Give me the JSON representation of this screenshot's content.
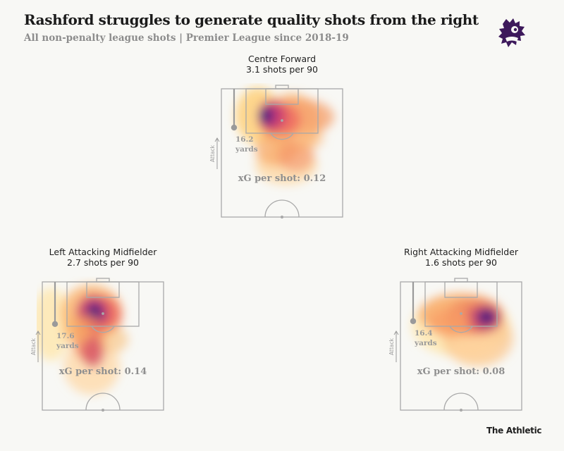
{
  "title": "Rashford struggles to generate quality shots from the right",
  "subtitle": "All non-penalty league shots | Premier League since 2018-19",
  "footer": "The Athletic",
  "chart_data": [
    {
      "type": "heatmap",
      "position": "Centre Forward",
      "rate_label": "3.1 shots per 90",
      "shots_per_90": 3.1,
      "distance_value": "16.2",
      "distance_unit": "yards",
      "avg_shot_distance_yards": 16.2,
      "xg_label": "xG per shot: 0.12",
      "xg_per_shot": 0.12,
      "attack_label": "Attack"
    },
    {
      "type": "heatmap",
      "position": "Left Attacking Midfielder",
      "rate_label": "2.7 shots per 90",
      "shots_per_90": 2.7,
      "distance_value": "17.6",
      "distance_unit": "yards",
      "avg_shot_distance_yards": 17.6,
      "xg_label": "xG per shot: 0.14",
      "xg_per_shot": 0.14,
      "attack_label": "Attack"
    },
    {
      "type": "heatmap",
      "position": "Right Attacking Midfielder",
      "rate_label": "1.6 shots per 90",
      "shots_per_90": 1.6,
      "distance_value": "16.4",
      "distance_unit": "yards",
      "avg_shot_distance_yards": 16.4,
      "xg_label": "xG per shot: 0.08",
      "xg_per_shot": 0.08,
      "attack_label": "Attack"
    }
  ],
  "colors": {
    "pitch_lines": "#a9a9a9",
    "annotation": "#9a9a9a",
    "heat_scale": [
      "#fff4c8",
      "#ffd07a",
      "#f9885a",
      "#e0476b",
      "#9a2c86",
      "#3b1c7a"
    ],
    "logo": "#3d195b"
  },
  "logo_icon": "premier-league-lion-icon"
}
